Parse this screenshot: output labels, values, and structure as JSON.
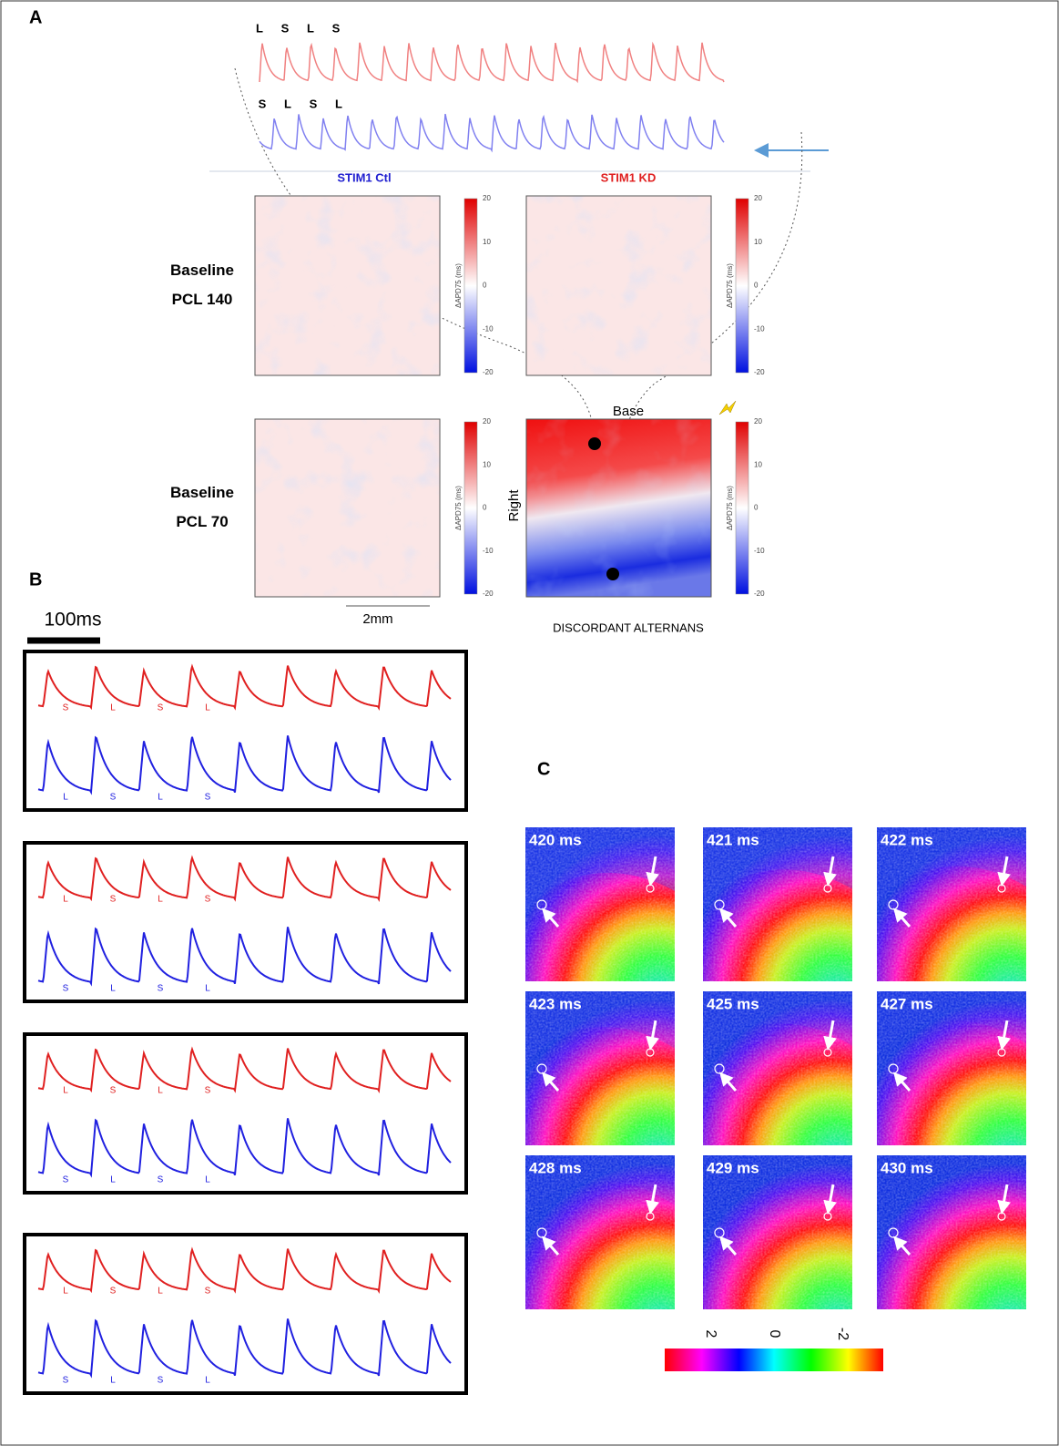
{
  "panel_a": {
    "label": "A",
    "red_trace_labels": [
      "L",
      "S",
      "L",
      "S"
    ],
    "blue_trace_labels": [
      "S",
      "L",
      "S",
      "L"
    ],
    "column_titles": [
      "STIM1 Ctl",
      "STIM1 KD"
    ],
    "row_titles": [
      [
        "Baseline",
        "PCL 140"
      ],
      [
        "Baseline",
        "PCL 70"
      ]
    ],
    "colorbar": {
      "ticks": [
        20,
        10,
        0,
        -10,
        -20
      ],
      "label": "ΔAPD75 (ms)"
    },
    "orientation": {
      "top": "Base",
      "side": "Right"
    },
    "scale_bar": "2mm",
    "caption": "DISCORDANT ALTERNANS"
  },
  "panel_b": {
    "label": "B",
    "scale_bar": "100ms",
    "boxes": [
      {
        "red_labels": [
          "S",
          "L",
          "S",
          "L"
        ],
        "blue_labels": [
          "L",
          "S",
          "L",
          "S"
        ]
      },
      {
        "red_labels": [
          "L",
          "S",
          "L",
          "S"
        ],
        "blue_labels": [
          "S",
          "L",
          "S",
          "L"
        ]
      },
      {
        "red_labels": [
          "L",
          "S",
          "L",
          "S"
        ],
        "blue_labels": [
          "S",
          "L",
          "S",
          "L"
        ]
      },
      {
        "red_labels": [
          "L",
          "S",
          "L",
          "S"
        ],
        "blue_labels": [
          "S",
          "L",
          "S",
          "L"
        ]
      }
    ]
  },
  "panel_c": {
    "label": "C",
    "frames": [
      "420 ms",
      "421 ms",
      "422 ms",
      "423 ms",
      "425 ms",
      "427 ms",
      "428 ms",
      "429 ms",
      "430 ms"
    ],
    "colorbar_ticks": [
      2,
      0,
      -2
    ]
  }
}
